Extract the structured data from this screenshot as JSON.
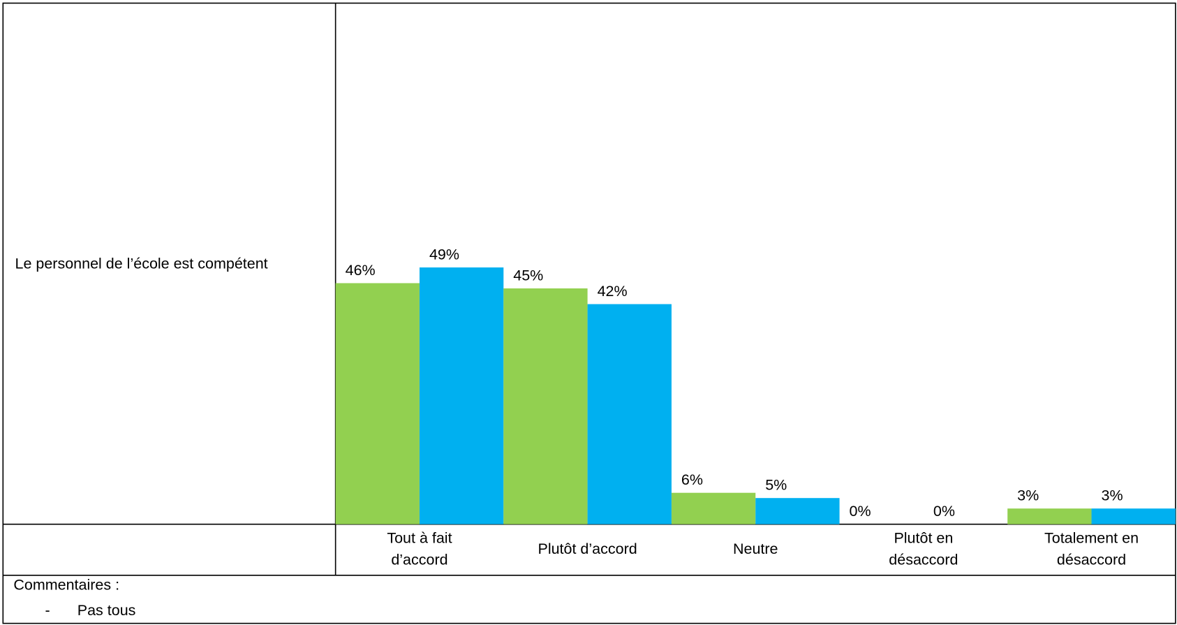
{
  "row_label": "Le personnel de l’école est compétent",
  "chart_data": {
    "type": "bar",
    "categories": [
      [
        "Tout à fait",
        "d’accord"
      ],
      [
        "Plutôt d’accord"
      ],
      [
        "Neutre"
      ],
      [
        "Plutôt en",
        "désaccord"
      ],
      [
        "Totalement en",
        "désaccord"
      ]
    ],
    "series": [
      {
        "color": "#92d050",
        "values": [
          46,
          45,
          6,
          0,
          3
        ],
        "value_labels": [
          "46%",
          "45%",
          "6%",
          "0%",
          "3%"
        ]
      },
      {
        "color": "#00b0f0",
        "values": [
          49,
          42,
          5,
          0,
          3
        ],
        "value_labels": [
          "49%",
          "42%",
          "5%",
          "0%",
          "3%"
        ]
      }
    ],
    "ylim": [
      0,
      100
    ]
  },
  "comments": {
    "title": "Commentaires :",
    "items": [
      {
        "bullet": "-",
        "text": "Pas tous"
      }
    ]
  }
}
